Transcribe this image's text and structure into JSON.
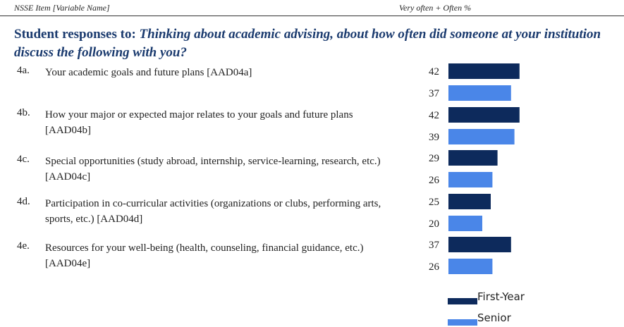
{
  "header": {
    "left": "NSSE Item [Variable Name]",
    "right": "Very often + Often %"
  },
  "title": {
    "lead": "Student responses to:",
    "question": "Thinking about academic advising, about how often did someone at your institution discuss the following with you?"
  },
  "items": [
    {
      "num": "4a.",
      "text": "Your academic goals and future plans [AAD04a]"
    },
    {
      "num": "4b.",
      "text": "How your major or expected major relates to your goals and future plans [AAD04b]"
    },
    {
      "num": "4c.",
      "text": "Special opportunities (study abroad, internship, service-learning, research, etc.) [AAD04c]"
    },
    {
      "num": "4d.",
      "text": "Participation in co-curricular activities (organizations or clubs, performing arts, sports, etc.) [AAD04d]"
    },
    {
      "num": "4e.",
      "text": "Resources for your well-being (health, counseling, financial guidance, etc.) [AAD04e]"
    }
  ],
  "chart_data": {
    "type": "bar",
    "orientation": "horizontal",
    "categories": [
      "4a.",
      "4b.",
      "4c.",
      "4d.",
      "4e."
    ],
    "series": [
      {
        "name": "First-Year",
        "color": "#0d2a5c",
        "values": [
          42,
          42,
          29,
          25,
          37
        ]
      },
      {
        "name": "Senior",
        "color": "#4a86e8",
        "values": [
          37,
          39,
          26,
          20,
          26
        ]
      }
    ],
    "legend_position": "bottom-right",
    "grid": false
  }
}
